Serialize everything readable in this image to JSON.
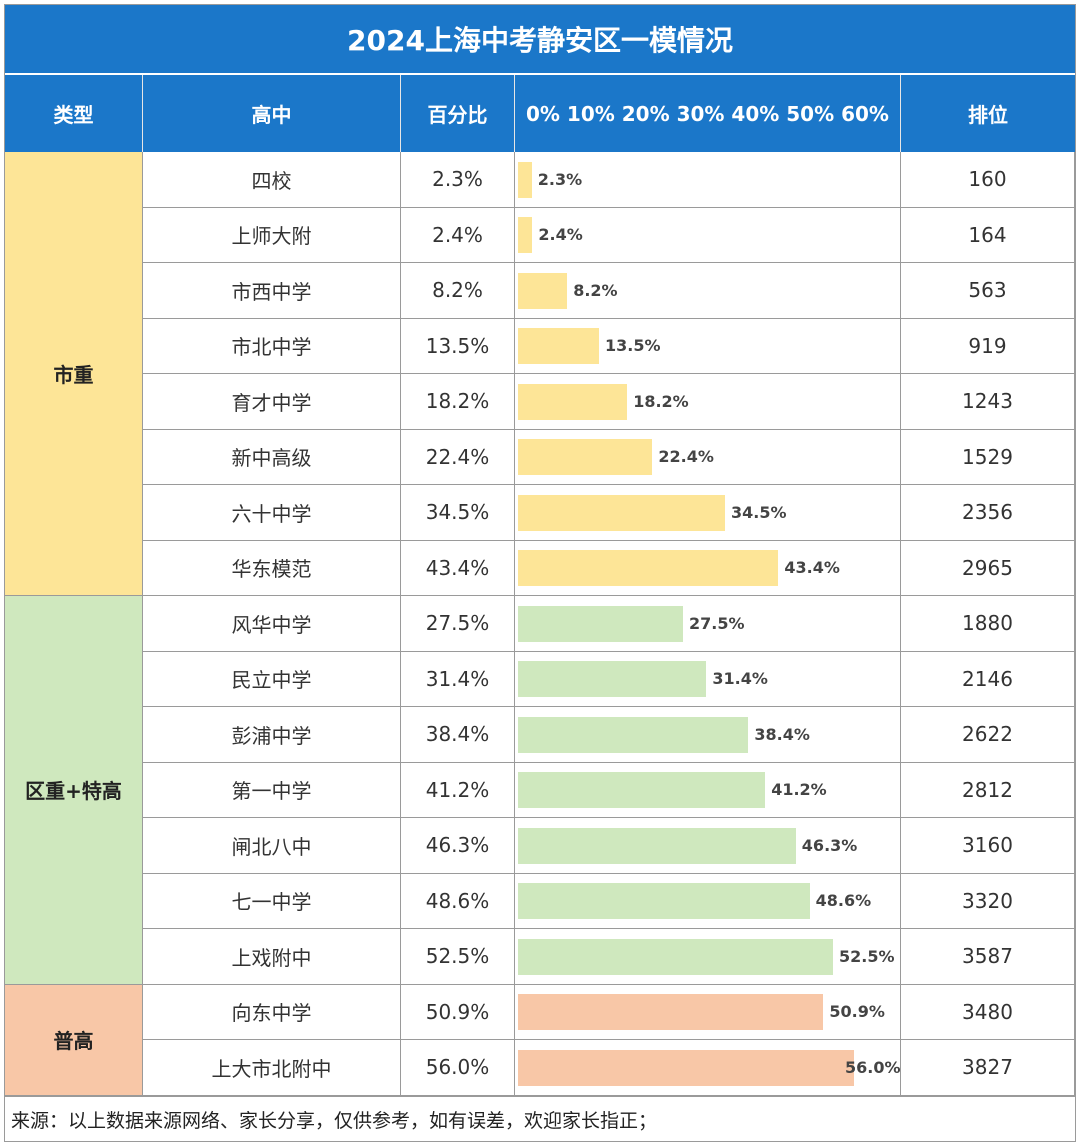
{
  "title": "2024上海中考静安区一模情况",
  "headers": {
    "type": "类型",
    "school": "高中",
    "percent": "百分比",
    "scale": "0% 10% 20% 30% 40% 50% 60%",
    "rank": "排位"
  },
  "groups": [
    {
      "label": "市重",
      "color": "#fde597"
    },
    {
      "label": "区重+特高",
      "color": "#cfe8be"
    },
    {
      "label": "普高",
      "color": "#f8c7a7"
    }
  ],
  "rows": [
    {
      "school": "四校",
      "percent": "2.3%",
      "rank": "160"
    },
    {
      "school": "上师大附",
      "percent": "2.4%",
      "rank": "164"
    },
    {
      "school": "市西中学",
      "percent": "8.2%",
      "rank": "563"
    },
    {
      "school": "市北中学",
      "percent": "13.5%",
      "rank": "919"
    },
    {
      "school": "育才中学",
      "percent": "18.2%",
      "rank": "1243"
    },
    {
      "school": "新中高级",
      "percent": "22.4%",
      "rank": "1529"
    },
    {
      "school": "六十中学",
      "percent": "34.5%",
      "rank": "2356"
    },
    {
      "school": "华东模范",
      "percent": "43.4%",
      "rank": "2965"
    },
    {
      "school": "风华中学",
      "percent": "27.5%",
      "rank": "1880"
    },
    {
      "school": "民立中学",
      "percent": "31.4%",
      "rank": "2146"
    },
    {
      "school": "彭浦中学",
      "percent": "38.4%",
      "rank": "2622"
    },
    {
      "school": "第一中学",
      "percent": "41.2%",
      "rank": "2812"
    },
    {
      "school": "闸北八中",
      "percent": "46.3%",
      "rank": "3160"
    },
    {
      "school": "七一中学",
      "percent": "48.6%",
      "rank": "3320"
    },
    {
      "school": "上戏附中",
      "percent": "52.5%",
      "rank": "3587"
    },
    {
      "school": "向东中学",
      "percent": "50.9%",
      "rank": "3480"
    },
    {
      "school": "上大市北附中",
      "percent": "56.0%",
      "rank": "3827"
    }
  ],
  "chart_data": {
    "type": "bar",
    "categories": [
      "四校",
      "上师大附",
      "市西中学",
      "市北中学",
      "育才中学",
      "新中高级",
      "六十中学",
      "华东模范",
      "风华中学",
      "民立中学",
      "彭浦中学",
      "第一中学",
      "闸北八中",
      "七一中学",
      "上戏附中",
      "向东中学",
      "上大市北附中"
    ],
    "values": [
      2.3,
      2.4,
      8.2,
      13.5,
      18.2,
      22.4,
      34.5,
      43.4,
      27.5,
      31.4,
      38.4,
      41.2,
      46.3,
      48.6,
      52.5,
      50.9,
      56.0
    ],
    "group_index": [
      0,
      0,
      0,
      0,
      0,
      0,
      0,
      0,
      1,
      1,
      1,
      1,
      1,
      1,
      1,
      2,
      2
    ],
    "xlim": [
      0,
      60
    ],
    "orientation": "horizontal",
    "value_unit": "%"
  },
  "footer": "来源：以上数据来源网络、家长分享，仅供参考，如有误差，欢迎家长指正；"
}
